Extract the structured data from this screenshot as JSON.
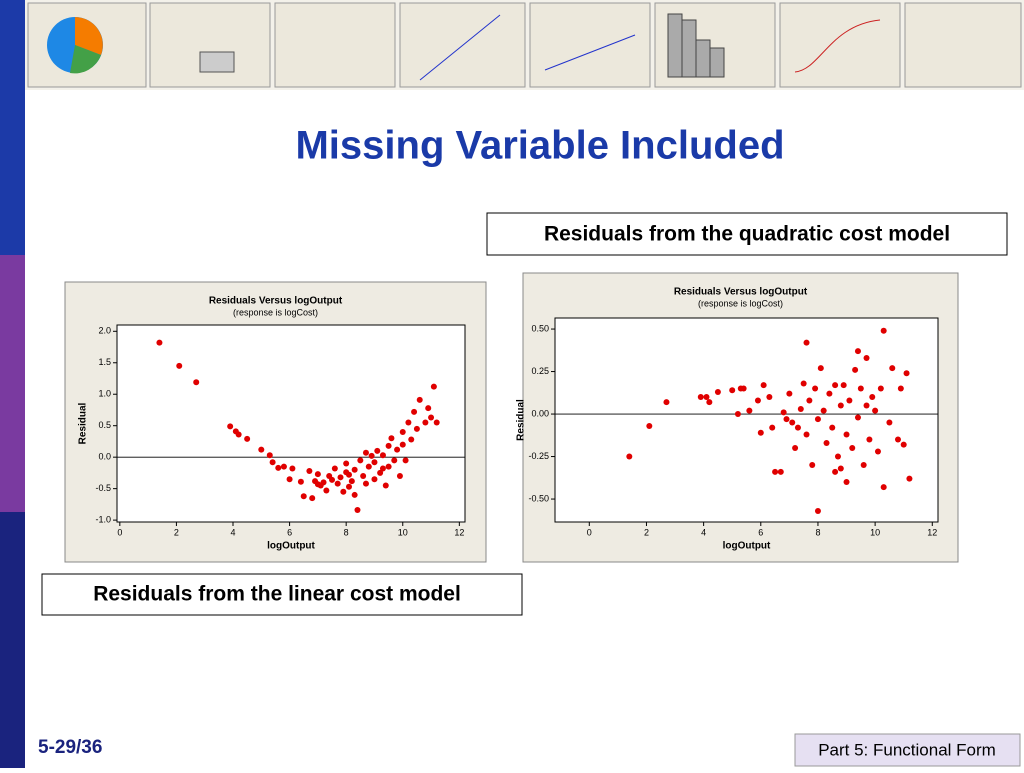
{
  "title": "Missing Variable Included",
  "captions": [
    "Residuals from the quadratic cost model",
    "Residuals from the linear cost model"
  ],
  "footer": {
    "page": "5-29/36",
    "section": "Part 5: Functional Form"
  },
  "chart_data": [
    {
      "type": "scatter",
      "title": "Residuals Versus logOutput",
      "subtitle": "(response is logCost)",
      "x_label": "logOutput",
      "y_label": "Residual",
      "color": "#e00000",
      "hline": 0,
      "xlim": [
        -0.1,
        12.2
      ],
      "xticks": [
        0,
        2,
        4,
        6,
        8,
        10,
        12
      ],
      "ylim": [
        -1.03,
        2.1
      ],
      "yticks": [
        {
          "value": -1,
          "label": "-1.0"
        },
        -0.5,
        {
          "value": 0,
          "label": "0.0"
        },
        0.5,
        {
          "value": 1,
          "label": "1.0"
        },
        1.5,
        {
          "value": 2,
          "label": "2.0"
        }
      ],
      "x": [
        1.4,
        2.1,
        2.7,
        3.9,
        4.1,
        4.2,
        4.5,
        5.0,
        5.3,
        5.4,
        5.6,
        5.8,
        6.0,
        6.1,
        6.4,
        6.5,
        6.7,
        6.8,
        6.9,
        7.0,
        7.1,
        7.2,
        7.3,
        7.4,
        7.5,
        7.6,
        7.7,
        7.8,
        7.9,
        8.0,
        8.0,
        8.1,
        8.2,
        8.3,
        8.3,
        8.4,
        8.5,
        8.6,
        8.7,
        8.7,
        8.8,
        8.9,
        9.0,
        9.0,
        9.1,
        9.2,
        9.3,
        9.4,
        9.5,
        9.5,
        9.6,
        9.7,
        9.8,
        9.9,
        10.0,
        10.0,
        10.1,
        10.2,
        10.3,
        10.4,
        10.5,
        10.6,
        10.8,
        10.9,
        11.0,
        11.1,
        11.2,
        9.3,
        8.1,
        7.0
      ],
      "values": [
        1.82,
        1.45,
        1.19,
        0.49,
        0.41,
        0.36,
        0.29,
        0.12,
        0.03,
        -0.08,
        -0.17,
        -0.15,
        -0.35,
        -0.18,
        -0.39,
        -0.62,
        -0.22,
        -0.65,
        -0.38,
        -0.27,
        -0.45,
        -0.4,
        -0.53,
        -0.3,
        -0.36,
        -0.18,
        -0.42,
        -0.32,
        -0.55,
        -0.24,
        -0.1,
        -0.47,
        -0.38,
        -0.6,
        -0.2,
        -0.84,
        -0.05,
        -0.3,
        0.07,
        -0.42,
        -0.15,
        0.02,
        -0.35,
        -0.08,
        0.1,
        -0.25,
        0.03,
        -0.45,
        0.18,
        -0.15,
        0.3,
        -0.05,
        0.12,
        -0.3,
        0.4,
        0.2,
        -0.05,
        0.55,
        0.28,
        0.72,
        0.45,
        0.91,
        0.55,
        0.78,
        0.63,
        1.12,
        0.55,
        -0.18,
        -0.28,
        -0.43
      ]
    },
    {
      "type": "scatter",
      "title": "Residuals Versus logOutput",
      "subtitle": "(response is logCost)",
      "x_label": "logOutput",
      "y_label": "Residual",
      "color": "#e00000",
      "hline": 0,
      "xlim": [
        -1.2,
        12.2
      ],
      "xticks": [
        0,
        2,
        4,
        6,
        8,
        10,
        12
      ],
      "ylim": [
        -0.635,
        0.565
      ],
      "yticks": [
        {
          "value": -0.5,
          "label": "-0.50"
        },
        -0.25,
        {
          "value": 0,
          "label": "0.00"
        },
        0.25,
        {
          "value": 0.5,
          "label": "0.50"
        }
      ],
      "x": [
        1.4,
        2.1,
        2.7,
        3.9,
        4.1,
        4.2,
        4.5,
        5.0,
        5.2,
        5.3,
        5.4,
        5.6,
        5.9,
        6.0,
        6.1,
        6.3,
        6.4,
        6.5,
        6.7,
        6.8,
        6.9,
        7.0,
        7.1,
        7.2,
        7.3,
        7.4,
        7.5,
        7.6,
        7.6,
        7.7,
        7.8,
        7.9,
        8.0,
        8.0,
        8.1,
        8.2,
        8.3,
        8.4,
        8.5,
        8.6,
        8.7,
        8.8,
        8.8,
        8.9,
        9.0,
        9.0,
        9.1,
        9.2,
        9.3,
        9.4,
        9.4,
        9.5,
        9.6,
        9.7,
        9.8,
        9.9,
        10.0,
        10.1,
        10.2,
        10.3,
        10.3,
        10.5,
        10.6,
        10.8,
        10.9,
        11.0,
        11.1,
        11.2,
        8.6,
        9.7
      ],
      "values": [
        -0.25,
        -0.07,
        0.07,
        0.1,
        0.1,
        0.07,
        0.13,
        0.14,
        0.0,
        0.15,
        0.15,
        0.02,
        0.08,
        -0.11,
        0.17,
        0.1,
        -0.08,
        -0.34,
        -0.34,
        0.01,
        -0.03,
        0.12,
        -0.05,
        -0.2,
        -0.08,
        0.03,
        0.18,
        0.42,
        -0.12,
        0.08,
        -0.3,
        0.15,
        -0.03,
        -0.57,
        0.27,
        0.02,
        -0.17,
        0.12,
        -0.08,
        0.17,
        -0.25,
        0.05,
        -0.32,
        0.17,
        -0.12,
        -0.4,
        0.08,
        -0.2,
        0.26,
        0.37,
        -0.02,
        0.15,
        -0.3,
        0.05,
        -0.15,
        0.1,
        0.02,
        -0.22,
        0.15,
        0.49,
        -0.43,
        -0.05,
        0.27,
        -0.15,
        0.15,
        -0.18,
        0.24,
        -0.38,
        -0.34,
        0.33
      ]
    }
  ]
}
